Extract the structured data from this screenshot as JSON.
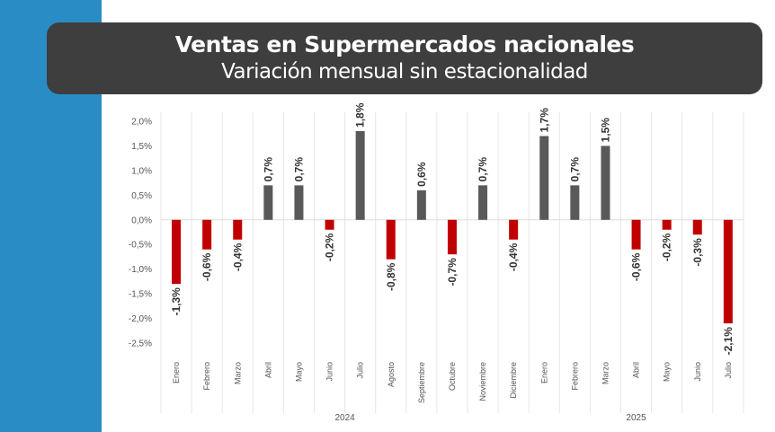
{
  "colors": {
    "left_stripe": "#2a8cc4",
    "title_bg": "#3e3e3e",
    "positive": "#595959",
    "negative": "#c00000"
  },
  "chart_data": {
    "type": "bar",
    "title": "Ventas en Supermercados nacionales",
    "subtitle": "Variación mensual sin estacionalidad",
    "categories": [
      "Enero",
      "Febrero",
      "Marzo",
      "Abril",
      "Mayo",
      "Junio",
      "Julio",
      "Agosto",
      "Septiembre",
      "Octubre",
      "Noviembre",
      "Diciembre",
      "Enero",
      "Febrero",
      "Marzo",
      "Abril",
      "Mayo",
      "Junio",
      "Julio"
    ],
    "values": [
      -1.3,
      -0.6,
      -0.4,
      0.7,
      0.7,
      -0.2,
      1.8,
      -0.8,
      0.6,
      -0.7,
      0.7,
      -0.4,
      1.7,
      0.7,
      1.5,
      -0.6,
      -0.2,
      -0.3,
      -2.1
    ],
    "value_labels": [
      "-1,3%",
      "-0,6%",
      "-0,4%",
      "0,7%",
      "0,7%",
      "-0,2%",
      "1,8%",
      "-0,8%",
      "0,6%",
      "-0,7%",
      "0,7%",
      "-0,4%",
      "1,7%",
      "0,7%",
      "1,5%",
      "-0,6%",
      "-0,2%",
      "-0,3%",
      "-2,1%"
    ],
    "year_groups": [
      {
        "label": "2024",
        "count": 12
      },
      {
        "label": "2025",
        "count": 7
      }
    ],
    "y_ticks": [
      {
        "value": 2.0,
        "label": "2,0%"
      },
      {
        "value": 1.5,
        "label": "1,5%"
      },
      {
        "value": 1.0,
        "label": "1,0%"
      },
      {
        "value": 0.5,
        "label": "0,5%"
      },
      {
        "value": 0.0,
        "label": "0,0%"
      },
      {
        "value": -0.5,
        "label": "-0,5%"
      },
      {
        "value": -1.0,
        "label": "-1,0%"
      },
      {
        "value": -1.5,
        "label": "-1,5%"
      },
      {
        "value": -2.0,
        "label": "-2,0%"
      },
      {
        "value": -2.5,
        "label": "-2,5%"
      }
    ],
    "ylim": [
      -2.5,
      2.0
    ],
    "grid": "vertical separators"
  }
}
